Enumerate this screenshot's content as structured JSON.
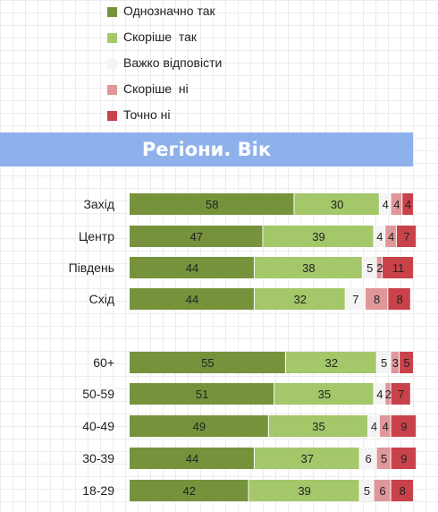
{
  "chart_data": {
    "type": "bar",
    "stacked": true,
    "orientation": "horizontal",
    "title": "Регіони. Вік",
    "legend_position": "top",
    "categories": [
      "Захід",
      "Центр",
      "Південь",
      "Схід",
      "60+",
      "50-59",
      "40-49",
      "30-39",
      "18-29"
    ],
    "groups": [
      [
        "Захід",
        "Центр",
        "Південь",
        "Схід"
      ],
      [
        "60+",
        "50-59",
        "40-49",
        "30-39",
        "18-29"
      ]
    ],
    "series": [
      {
        "name": "Однозначно так",
        "color": "#76933c",
        "values": [
          58,
          47,
          44,
          44,
          55,
          51,
          49,
          44,
          42
        ]
      },
      {
        "name": "Скоріше  так",
        "color": "#a4c76a",
        "values": [
          30,
          39,
          38,
          32,
          32,
          35,
          35,
          37,
          39
        ]
      },
      {
        "name": "Важко відповісти",
        "color": "#f4f4f4",
        "values": [
          4,
          4,
          5,
          7,
          5,
          4,
          4,
          6,
          5
        ]
      },
      {
        "name": "Скоріше  ні",
        "color": "#e0979a",
        "values": [
          4,
          4,
          2,
          8,
          3,
          2,
          4,
          5,
          6
        ]
      },
      {
        "name": "Точно ні",
        "color": "#c9424a",
        "values": [
          4,
          7,
          11,
          8,
          5,
          7,
          9,
          9,
          8
        ]
      }
    ],
    "xlim": [
      0,
      100
    ],
    "grid": false
  }
}
